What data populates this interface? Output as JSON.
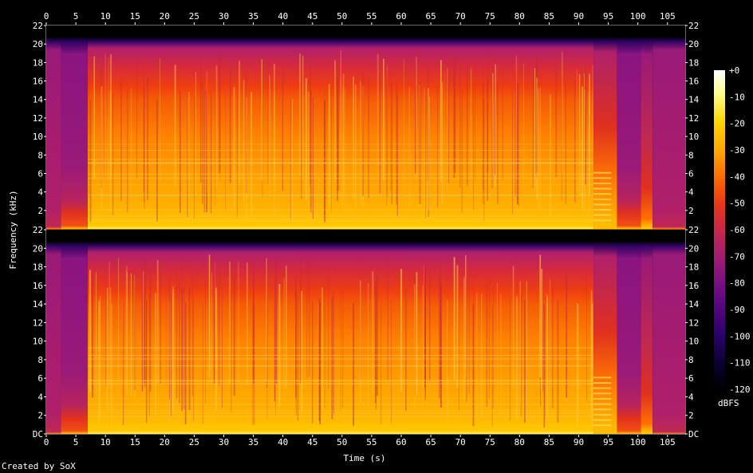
{
  "chart_data": {
    "type": "heatmap",
    "subtype": "spectrogram",
    "title": "",
    "xlabel": "Time (s)",
    "ylabel": "Frequency (kHz)",
    "xlim": [
      0,
      108
    ],
    "ylim": [
      0,
      22
    ],
    "x_ticks": [
      "0",
      "5",
      "10",
      "15",
      "20",
      "25",
      "30",
      "35",
      "40",
      "45",
      "50",
      "55",
      "60",
      "65",
      "70",
      "75",
      "80",
      "85",
      "90",
      "95",
      "100",
      "105"
    ],
    "y_ticks_top": [
      "2",
      "4",
      "6",
      "8",
      "10",
      "12",
      "14",
      "16",
      "18",
      "20",
      "22"
    ],
    "y_ticks_bottom": [
      "DC",
      "2",
      "4",
      "6",
      "8",
      "10",
      "12",
      "14",
      "16",
      "18",
      "20",
      "22"
    ],
    "channels": 2,
    "colorbar": {
      "label": "dBFS",
      "range": [
        -120,
        0
      ],
      "ticks": [
        "+0",
        "-10",
        "-20",
        "-30",
        "-40",
        "-50",
        "-60",
        "-70",
        "-80",
        "-90",
        "-100",
        "-110",
        "-120"
      ],
      "colors": [
        "#000000",
        "#0b0033",
        "#300070",
        "#6a0a85",
        "#9a1a78",
        "#c8284a",
        "#e8361a",
        "#ff6800",
        "#ffa800",
        "#ffd600",
        "#ffff90",
        "#ffffff"
      ]
    },
    "sections": [
      {
        "start": 0,
        "end": 2.5,
        "level": "low"
      },
      {
        "start": 2.5,
        "end": 7,
        "level": "quiet"
      },
      {
        "start": 7,
        "end": 92.5,
        "level": "loud"
      },
      {
        "start": 92.5,
        "end": 96.5,
        "level": "stutter"
      },
      {
        "start": 96.5,
        "end": 100.5,
        "level": "quiet"
      },
      {
        "start": 100.5,
        "end": 102.5,
        "level": "mid"
      },
      {
        "start": 102.5,
        "end": 108,
        "level": "low"
      }
    ],
    "grid": false,
    "legend": "right"
  },
  "footer": {
    "credit": "Created by SoX"
  }
}
